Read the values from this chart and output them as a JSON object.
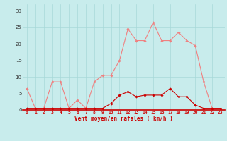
{
  "x": [
    0,
    1,
    2,
    3,
    4,
    5,
    6,
    7,
    8,
    9,
    10,
    11,
    12,
    13,
    14,
    15,
    16,
    17,
    18,
    19,
    20,
    21,
    22,
    23
  ],
  "rafales": [
    6.5,
    0.5,
    0.5,
    8.5,
    8.5,
    0.5,
    3.0,
    0.5,
    8.5,
    10.5,
    10.5,
    15.0,
    24.5,
    21.0,
    21.0,
    26.5,
    21.0,
    21.0,
    23.5,
    21.0,
    19.5,
    8.5,
    0.5,
    0.5
  ],
  "moyen": [
    0.5,
    0.5,
    0.5,
    0.5,
    0.5,
    0.5,
    0.5,
    0.5,
    0.5,
    0.5,
    2.0,
    4.5,
    5.5,
    4.0,
    4.5,
    4.5,
    4.5,
    6.5,
    4.0,
    4.0,
    1.5,
    0.5,
    0.5,
    0.5
  ],
  "rafales_color": "#f08080",
  "moyen_color": "#cc0000",
  "bg_color": "#c8ecec",
  "grid_color": "#a8d8d8",
  "xlabel": "Vent moyen/en rafales ( km/h )",
  "ylabel_ticks": [
    0,
    5,
    10,
    15,
    20,
    25,
    30
  ],
  "xlim": [
    -0.5,
    23.5
  ],
  "ylim": [
    0,
    32
  ]
}
